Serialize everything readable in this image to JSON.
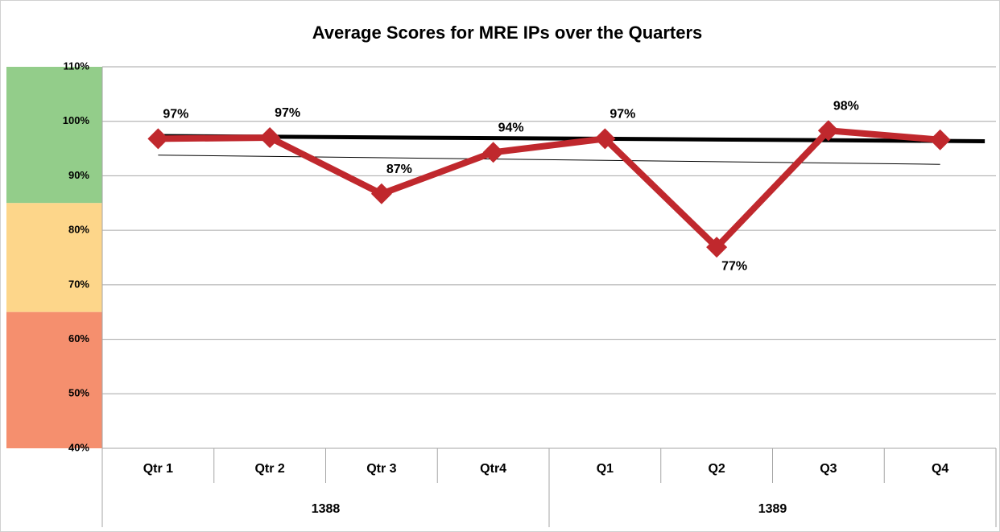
{
  "chart_data": {
    "type": "line",
    "title": "Average Scores for MRE IPs over the Quarters",
    "categories": [
      "Qtr 1",
      "Qtr 2",
      "Qtr 3",
      "Qtr4",
      "Q1",
      "Q2",
      "Q3",
      "Q4"
    ],
    "groups": [
      "1388",
      "1389"
    ],
    "group_sizes": [
      4,
      4
    ],
    "series": [
      {
        "color": "#c0282d",
        "values": [
          96.8,
          97.0,
          86.7,
          94.3,
          96.8,
          76.9,
          98.3,
          96.6
        ],
        "value_labels": [
          "97%",
          "97%",
          "87%",
          "94%",
          "97%",
          "77%",
          "98%",
          null
        ]
      }
    ],
    "trendlines": [
      {
        "color": "#000000",
        "width": 5,
        "values": [
          97.3,
          96.4
        ]
      },
      {
        "color": "#000000",
        "width": 1,
        "values": [
          93.8,
          92.1
        ]
      }
    ],
    "bands": [
      {
        "from": 85,
        "to": 110,
        "color": "#93cd8a"
      },
      {
        "from": 65,
        "to": 85,
        "color": "#fdd68a"
      },
      {
        "from": 40,
        "to": 65,
        "color": "#f58f6e"
      }
    ],
    "ylim": [
      40,
      110
    ],
    "yticks": [
      {
        "value": 40,
        "label": "40%"
      },
      {
        "value": 50,
        "label": "50%"
      },
      {
        "value": 60,
        "label": "60%"
      },
      {
        "value": 70,
        "label": "70%"
      },
      {
        "value": 80,
        "label": "80%"
      },
      {
        "value": 90,
        "label": "90%"
      },
      {
        "value": 100,
        "label": "100%"
      },
      {
        "value": 110,
        "label": "110%"
      }
    ],
    "grid": true
  }
}
